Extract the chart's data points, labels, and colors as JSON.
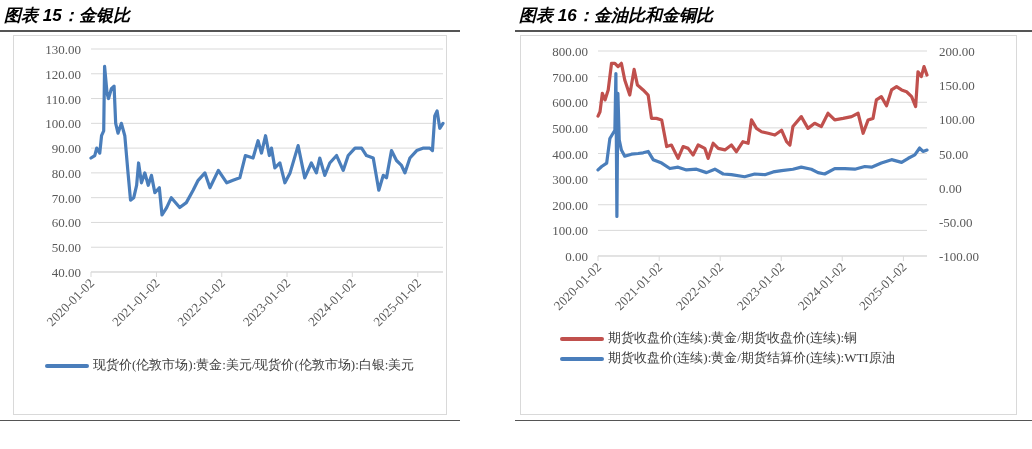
{
  "chart_data": [
    {
      "type": "line",
      "title": "图表 15：金银比",
      "xlim": [
        "2020-01-02",
        "2025-05-23"
      ],
      "xticks": [
        "2020-01-02",
        "2021-01-02",
        "2022-01-02",
        "2023-01-02",
        "2024-01-02",
        "2025-01-02"
      ],
      "ylim": [
        40,
        130
      ],
      "yticks": [
        {
          "value": 40,
          "label": "40.00"
        },
        {
          "value": 50,
          "label": "50.00"
        },
        {
          "value": 60,
          "label": "60.00"
        },
        {
          "value": 70,
          "label": "70.00"
        },
        {
          "value": 80,
          "label": "80.00"
        },
        {
          "value": 90,
          "label": "90.00"
        },
        {
          "value": 100,
          "label": "100.00"
        },
        {
          "value": 110,
          "label": "110.00"
        },
        {
          "value": 120,
          "label": "120.00"
        },
        {
          "value": 130,
          "label": "130.00"
        }
      ],
      "grid": "y",
      "legend": "bottom",
      "series": [
        {
          "name": "现货价(伦敦市场):黄金:美元/现货价(伦敦市场):白银:美元",
          "color": "#4a7ebb",
          "x": [
            "2020-01-02",
            "2020-01-23",
            "2020-02-03",
            "2020-02-20",
            "2020-03-01",
            "2020-03-13",
            "2020-03-18",
            "2020-04-01",
            "2020-04-09",
            "2020-04-25",
            "2020-05-10",
            "2020-05-19",
            "2020-06-01",
            "2020-06-20",
            "2020-07-09",
            "2020-07-27",
            "2020-08-10",
            "2020-08-28",
            "2020-09-13",
            "2020-09-24",
            "2020-10-10",
            "2020-10-29",
            "2020-11-17",
            "2020-12-05",
            "2020-12-24",
            "2021-01-18",
            "2021-02-02",
            "2021-02-28",
            "2021-03-26",
            "2021-05-12",
            "2021-06-18",
            "2021-07-26",
            "2021-08-23",
            "2021-09-30",
            "2021-10-28",
            "2021-12-14",
            "2022-01-30",
            "2022-03-06",
            "2022-04-13",
            "2022-05-14",
            "2022-06-26",
            "2022-07-24",
            "2022-08-12",
            "2022-09-04",
            "2022-09-25",
            "2022-10-07",
            "2022-10-26",
            "2022-11-23",
            "2022-12-21",
            "2023-01-19",
            "2023-03-05",
            "2023-04-11",
            "2023-05-18",
            "2023-06-15",
            "2023-07-04",
            "2023-08-01",
            "2023-08-29",
            "2023-10-06",
            "2023-11-12",
            "2023-12-10",
            "2024-01-17",
            "2024-02-23",
            "2024-03-21",
            "2024-04-28",
            "2024-05-29",
            "2024-06-23",
            "2024-07-11",
            "2024-08-08",
            "2024-09-05",
            "2024-10-03",
            "2024-10-22",
            "2024-11-19",
            "2024-12-27",
            "2025-02-03",
            "2025-03-10",
            "2025-03-25",
            "2025-04-07",
            "2025-04-20",
            "2025-05-05",
            "2025-05-23"
          ],
          "values": [
            86,
            87,
            90,
            88,
            95,
            97,
            123,
            112,
            110,
            114,
            115,
            100,
            96,
            100,
            95,
            80,
            69,
            70,
            75,
            84,
            76,
            80,
            75,
            79,
            72,
            74,
            63,
            66,
            70,
            66,
            68,
            73,
            77,
            80,
            74,
            81,
            76,
            77,
            78,
            87,
            86,
            93,
            88,
            95,
            87,
            90,
            82,
            84,
            76,
            80,
            91,
            78,
            84,
            80,
            86,
            79,
            84,
            87,
            81,
            87,
            90,
            90,
            87,
            86,
            73,
            79,
            78,
            89,
            85,
            83,
            80,
            86,
            89,
            90,
            90,
            89,
            103,
            105,
            98,
            100
          ]
        }
      ]
    },
    {
      "type": "line",
      "title": "图表 16：金油比和金铜比",
      "xlim": [
        "2020-01-02",
        "2025-05-23"
      ],
      "xticks": [
        "2020-01-02",
        "2021-01-02",
        "2022-01-02",
        "2023-01-02",
        "2024-01-02",
        "2025-01-02"
      ],
      "ylim": [
        0,
        800
      ],
      "yticks": [
        {
          "value": 0,
          "label": "0.00"
        },
        {
          "value": 100,
          "label": "100.00"
        },
        {
          "value": 200,
          "label": "200.00"
        },
        {
          "value": 300,
          "label": "300.00"
        },
        {
          "value": 400,
          "label": "400.00"
        },
        {
          "value": 500,
          "label": "500.00"
        },
        {
          "value": 600,
          "label": "600.00"
        },
        {
          "value": 700,
          "label": "700.00"
        },
        {
          "value": 800,
          "label": "800.00"
        }
      ],
      "y2lim": [
        -100,
        200
      ],
      "y2ticks": [
        {
          "value": -100,
          "label": "-100.00"
        },
        {
          "value": -50,
          "label": "-50.00"
        },
        {
          "value": 0,
          "label": "0.00"
        },
        {
          "value": 50,
          "label": "50.00"
        },
        {
          "value": 100,
          "label": "100.00"
        },
        {
          "value": 150,
          "label": "150.00"
        },
        {
          "value": 200,
          "label": "200.00"
        }
      ],
      "grid": "y",
      "legend": "bottom",
      "series": [
        {
          "name": "期货收盘价(连续):黄金/期货收盘价(连续):铜",
          "color": "#c0504d",
          "x": [
            "2020-01-02",
            "2020-01-14",
            "2020-01-28",
            "2020-02-13",
            "2020-03-03",
            "2020-03-23",
            "2020-04-12",
            "2020-05-01",
            "2020-05-21",
            "2020-06-10",
            "2020-07-10",
            "2020-08-05",
            "2020-08-25",
            "2020-09-28",
            "2020-10-28",
            "2020-11-17",
            "2020-12-17",
            "2021-01-17",
            "2021-02-16",
            "2021-03-16",
            "2021-04-25",
            "2021-05-25",
            "2021-06-24",
            "2021-07-24",
            "2021-08-23",
            "2021-10-02",
            "2021-10-22",
            "2021-11-21",
            "2021-12-21",
            "2022-01-30",
            "2022-03-10",
            "2022-04-09",
            "2022-05-18",
            "2022-06-18",
            "2022-07-08",
            "2022-08-07",
            "2022-09-06",
            "2022-10-16",
            "2022-11-25",
            "2023-01-04",
            "2023-02-03",
            "2023-02-23",
            "2023-03-13",
            "2023-05-02",
            "2023-06-11",
            "2023-07-21",
            "2023-08-30",
            "2023-10-09",
            "2023-11-18",
            "2024-01-07",
            "2024-02-27",
            "2024-04-06",
            "2024-05-06",
            "2024-06-05",
            "2024-07-04",
            "2024-07-24",
            "2024-08-23",
            "2024-09-23",
            "2024-10-23",
            "2024-11-22",
            "2024-12-22",
            "2025-01-21",
            "2025-02-20",
            "2025-03-16",
            "2025-03-30",
            "2025-04-19",
            "2025-05-05",
            "2025-05-23"
          ],
          "values": [
            546,
            563,
            635,
            609,
            648,
            752,
            752,
            739,
            752,
            687,
            628,
            728,
            667,
            648,
            628,
            537,
            537,
            531,
            427,
            433,
            381,
            427,
            420,
            394,
            433,
            420,
            381,
            440,
            420,
            414,
            433,
            407,
            446,
            440,
            531,
            498,
            485,
            479,
            472,
            491,
            446,
            433,
            505,
            544,
            498,
            518,
            505,
            557,
            531,
            537,
            544,
            557,
            479,
            531,
            537,
            609,
            622,
            586,
            648,
            661,
            648,
            641,
            622,
            583,
            719,
            700,
            739,
            706
          ]
        },
        {
          "name": "期货收盘价(连续):黄金/期货结算价(连续):WTI原油",
          "color": "#4a7ebb",
          "axis": "y2",
          "x": [
            "2020-01-02",
            "2020-01-24",
            "2020-02-23",
            "2020-03-13",
            "2020-04-02",
            "2020-04-12",
            "2020-04-18",
            "2020-04-24",
            "2020-04-30",
            "2020-05-08",
            "2020-05-21",
            "2020-06-10",
            "2020-07-20",
            "2020-08-29",
            "2020-09-28",
            "2020-10-28",
            "2020-11-27",
            "2021-01-17",
            "2021-03-07",
            "2021-04-25",
            "2021-06-14",
            "2021-08-13",
            "2021-10-12",
            "2021-12-01",
            "2022-01-20",
            "2022-03-10",
            "2022-05-28",
            "2022-07-27",
            "2022-09-26",
            "2022-11-15",
            "2023-01-04",
            "2023-03-13",
            "2023-05-02",
            "2023-07-01",
            "2023-08-10",
            "2023-09-19",
            "2023-11-18",
            "2024-01-17",
            "2024-03-17",
            "2024-05-16",
            "2024-06-25",
            "2024-08-23",
            "2024-10-23",
            "2024-12-22",
            "2025-01-31",
            "2025-03-11",
            "2025-04-09",
            "2025-04-29",
            "2025-05-23"
          ],
          "values": [
            26,
            31,
            36,
            72,
            80,
            84,
            167,
            -42,
            138,
            70,
            55,
            46,
            49,
            50,
            51,
            53,
            41,
            36,
            28,
            30,
            26,
            27,
            22,
            27,
            20,
            19,
            16,
            20,
            19,
            23,
            25,
            27,
            30,
            27,
            22,
            20,
            28,
            28,
            27,
            31,
            30,
            36,
            41,
            37,
            43,
            48,
            58,
            53,
            55
          ]
        }
      ]
    }
  ]
}
